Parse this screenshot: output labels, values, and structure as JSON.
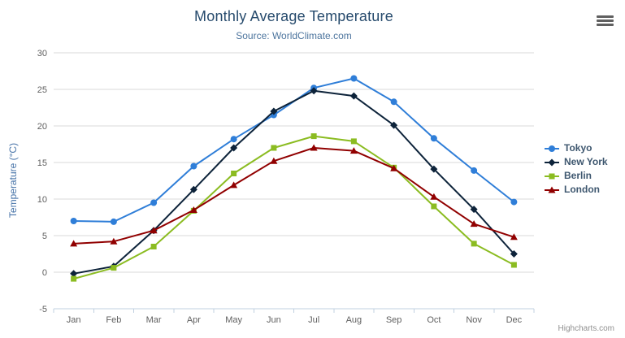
{
  "header": {
    "export_menu_icon": "hamburger-icon"
  },
  "credits": {
    "label": "Highcharts.com"
  },
  "chart_data": {
    "type": "line",
    "title": "Monthly Average Temperature",
    "subtitle": "Source: WorldClimate.com",
    "xlabel": "",
    "ylabel": "Temperature (°C)",
    "categories": [
      "Jan",
      "Feb",
      "Mar",
      "Apr",
      "May",
      "Jun",
      "Jul",
      "Aug",
      "Sep",
      "Oct",
      "Nov",
      "Dec"
    ],
    "series": [
      {
        "name": "Tokyo",
        "color": "#2f7ed8",
        "marker": "circle",
        "values": [
          7.0,
          6.9,
          9.5,
          14.5,
          18.2,
          21.5,
          25.2,
          26.5,
          23.3,
          18.3,
          13.9,
          9.6
        ]
      },
      {
        "name": "New York",
        "color": "#0d233a",
        "marker": "diamond",
        "values": [
          -0.2,
          0.8,
          5.7,
          11.3,
          17.0,
          22.0,
          24.8,
          24.1,
          20.1,
          14.1,
          8.6,
          2.5
        ]
      },
      {
        "name": "Berlin",
        "color": "#8bbc21",
        "marker": "square",
        "values": [
          -0.9,
          0.6,
          3.5,
          8.4,
          13.5,
          17.0,
          18.6,
          17.9,
          14.3,
          9.0,
          3.9,
          1.0
        ]
      },
      {
        "name": "London",
        "color": "#910000",
        "marker": "triangle",
        "values": [
          3.9,
          4.2,
          5.7,
          8.5,
          11.9,
          15.2,
          17.0,
          16.6,
          14.2,
          10.3,
          6.6,
          4.8
        ]
      }
    ],
    "ylim": [
      -5,
      30
    ],
    "ytick_step": 5,
    "ytick_labels": [
      "-5",
      "0",
      "5",
      "10",
      "15",
      "20",
      "25",
      "30"
    ],
    "grid": true,
    "legend_position": "right",
    "colors": {
      "grid": "#d8d8d8",
      "axis_line": "#c0d0e0",
      "tick_label": "#606060",
      "title": "#274b6d",
      "subtitle": "#4d759e",
      "legend_text": "#3e576f"
    }
  }
}
